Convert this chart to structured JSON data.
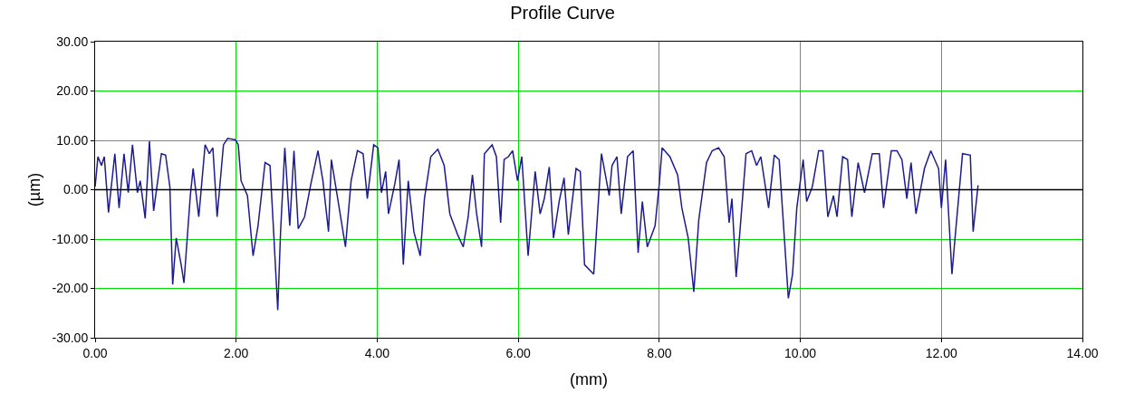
{
  "chart_data": {
    "type": "line",
    "title": "Profile Curve",
    "xlabel": "(mm)",
    "ylabel": "(µm)",
    "xlim": [
      0,
      14
    ],
    "xticks": [
      {
        "value": 0,
        "label": "0.00"
      },
      {
        "value": 2,
        "label": "2.00"
      },
      {
        "value": 4,
        "label": "4.00"
      },
      {
        "value": 6,
        "label": "6.00"
      },
      {
        "value": 8,
        "label": "8.00"
      },
      {
        "value": 10,
        "label": "10.00"
      },
      {
        "value": 12,
        "label": "12.00"
      },
      {
        "value": 14,
        "label": "14.00"
      }
    ],
    "ylim": [
      -30,
      30
    ],
    "yticks": [
      {
        "value": -30,
        "label": "-30.00"
      },
      {
        "value": -20,
        "label": "-20.00"
      },
      {
        "value": -10,
        "label": "-10.00"
      },
      {
        "value": 0,
        "label": "0.00"
      },
      {
        "value": 10,
        "label": "10.00"
      },
      {
        "value": 20,
        "label": "20.00"
      },
      {
        "value": 30,
        "label": "30.00"
      }
    ],
    "grid": true,
    "marker": "none",
    "line_style": "solid",
    "ref_lines": [
      {
        "axis": "y",
        "value": 0,
        "color": "#000000"
      }
    ],
    "series": [
      {
        "color": "#1c1c90",
        "x": [
          0,
          0.04,
          0.09,
          0.13,
          0.19,
          0.28,
          0.34,
          0.41,
          0.47,
          0.53,
          0.6,
          0.64,
          0.71,
          0.77,
          0.83,
          0.94,
          1.0,
          1.06,
          1.1,
          1.15,
          1.22,
          1.26,
          1.35,
          1.39,
          1.47,
          1.56,
          1.62,
          1.67,
          1.73,
          1.82,
          1.88,
          1.99,
          2.03,
          2.07,
          2.16,
          2.24,
          2.31,
          2.41,
          2.48,
          2.52,
          2.59,
          2.63,
          2.69,
          2.76,
          2.82,
          2.88,
          2.97,
          3.06,
          3.16,
          3.23,
          3.31,
          3.35,
          3.44,
          3.55,
          3.63,
          3.72,
          3.8,
          3.86,
          3.95,
          4.01,
          4.06,
          4.12,
          4.16,
          4.25,
          4.31,
          4.37,
          4.44,
          4.52,
          4.61,
          4.67,
          4.76,
          4.86,
          4.95,
          5.03,
          5.14,
          5.22,
          5.29,
          5.35,
          5.41,
          5.48,
          5.52,
          5.63,
          5.69,
          5.75,
          5.8,
          5.86,
          5.92,
          5.99,
          6.05,
          6.14,
          6.24,
          6.31,
          6.37,
          6.44,
          6.5,
          6.58,
          6.65,
          6.71,
          6.82,
          6.88,
          6.94,
          7.07,
          7.18,
          7.29,
          7.33,
          7.4,
          7.46,
          7.55,
          7.63,
          7.7,
          7.76,
          7.83,
          7.94,
          8.0,
          8.04,
          8.15,
          8.26,
          8.32,
          8.41,
          8.49,
          8.56,
          8.67,
          8.75,
          8.84,
          8.92,
          8.99,
          9.03,
          9.09,
          9.14,
          9.23,
          9.31,
          9.38,
          9.44,
          9.55,
          9.63,
          9.7,
          9.83,
          9.89,
          9.95,
          10.04,
          10.09,
          10.17,
          10.26,
          10.32,
          10.39,
          10.47,
          10.52,
          10.6,
          10.67,
          10.73,
          10.82,
          10.91,
          11.02,
          11.12,
          11.18,
          11.29,
          11.37,
          11.44,
          11.51,
          11.57,
          11.64,
          11.76,
          11.85,
          11.96,
          12.0,
          12.06,
          12.15,
          12.19,
          12.3,
          12.41,
          12.45,
          12.52
        ],
        "values": [
          0.6,
          6.7,
          4.9,
          6.7,
          -4.6,
          7.3,
          -3.7,
          7.3,
          -0.6,
          9.1,
          -0.6,
          1.8,
          -5.8,
          9.8,
          -4.3,
          7.3,
          7.0,
          0.6,
          -19.2,
          -9.8,
          -15.2,
          -18.9,
          -1.2,
          4.3,
          -5.5,
          9.1,
          7.3,
          8.5,
          -5.5,
          9.1,
          10.4,
          10.1,
          9.1,
          1.8,
          -1.2,
          -13.4,
          -7.3,
          5.5,
          4.9,
          -5.5,
          -24.4,
          -8.5,
          8.5,
          -7.3,
          7.9,
          -7.9,
          -5.5,
          1.2,
          7.9,
          1.8,
          -8.5,
          6.1,
          -1.8,
          -11.6,
          1.8,
          7.9,
          7.3,
          -1.8,
          9.1,
          8.5,
          -0.6,
          3.7,
          -4.9,
          1.2,
          6.1,
          -15.2,
          1.8,
          -8.5,
          -13.4,
          -1.8,
          6.7,
          8.2,
          4.9,
          -4.9,
          -9.1,
          -11.6,
          -5.5,
          3.0,
          -4.9,
          -11.6,
          7.3,
          9.1,
          6.7,
          -6.7,
          6.1,
          6.7,
          7.9,
          1.8,
          6.7,
          -13.4,
          3.7,
          -4.9,
          -1.8,
          4.6,
          -9.8,
          -2.4,
          2.4,
          -9.1,
          4.3,
          3.7,
          -15.2,
          -17.1,
          7.3,
          -1.2,
          4.9,
          6.7,
          -4.9,
          6.7,
          7.9,
          -12.8,
          -2.4,
          -11.6,
          -7.3,
          1.2,
          8.5,
          6.7,
          3.0,
          -3.7,
          -9.8,
          -20.7,
          -6.1,
          5.5,
          7.9,
          8.5,
          6.7,
          -6.7,
          -1.8,
          -17.7,
          -9.1,
          7.3,
          7.9,
          4.9,
          6.7,
          -3.7,
          7.0,
          6.1,
          -22.0,
          -17.1,
          -3.7,
          6.1,
          -2.4,
          0.6,
          7.9,
          7.9,
          -5.5,
          -1.2,
          -5.5,
          6.7,
          6.1,
          -5.5,
          5.5,
          -0.6,
          7.3,
          7.3,
          -3.7,
          7.9,
          7.9,
          6.1,
          -1.8,
          5.5,
          -4.9,
          4.3,
          7.9,
          4.3,
          -3.7,
          6.1,
          -17.1,
          -10.4,
          7.3,
          7.0,
          -8.5,
          0.9
        ]
      }
    ]
  }
}
